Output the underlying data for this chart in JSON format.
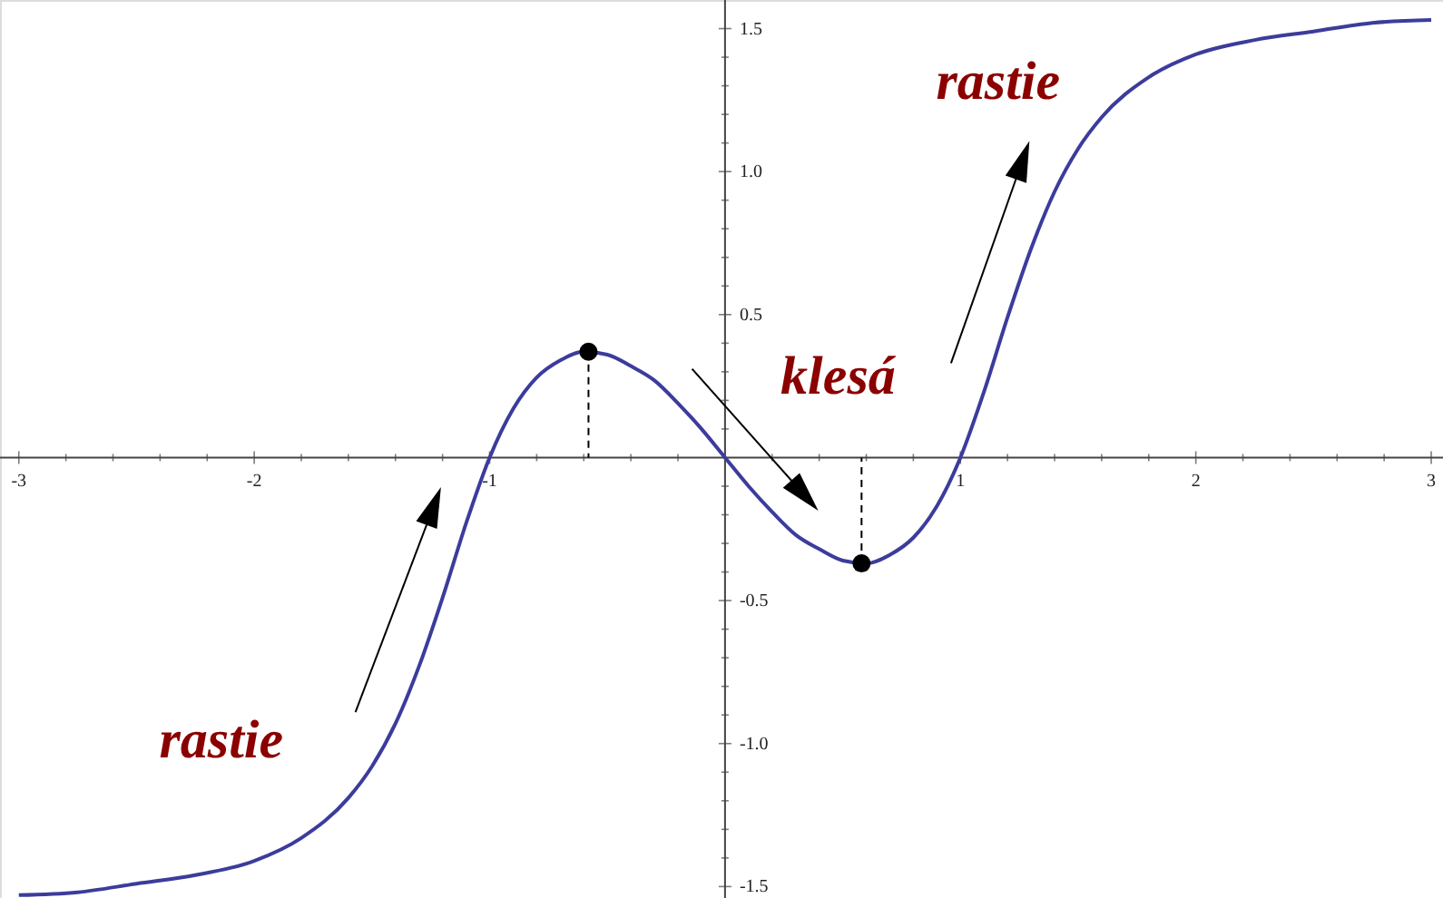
{
  "chart_data": {
    "type": "line",
    "xlim": [
      -3.08,
      3.05
    ],
    "ylim": [
      -1.54,
      1.6
    ],
    "xticks": [
      -3,
      -2,
      -1,
      1,
      2,
      3,
      {
        "value": -2.8,
        "label": null
      },
      {
        "value": -2.6,
        "label": null
      },
      {
        "value": -2.4,
        "label": null
      },
      {
        "value": -2.2,
        "label": null
      },
      {
        "value": -1.8,
        "label": null
      },
      {
        "value": -1.6,
        "label": null
      },
      {
        "value": -1.4,
        "label": null
      },
      {
        "value": -1.2,
        "label": null
      },
      {
        "value": -0.8,
        "label": null
      },
      {
        "value": -0.6,
        "label": null
      },
      {
        "value": -0.4,
        "label": null
      },
      {
        "value": -0.2,
        "label": null
      },
      {
        "value": 0.2,
        "label": null
      },
      {
        "value": 0.4,
        "label": null
      },
      {
        "value": 0.6,
        "label": null
      },
      {
        "value": 0.8,
        "label": null
      },
      {
        "value": 1.2,
        "label": null
      },
      {
        "value": 1.4,
        "label": null
      },
      {
        "value": 1.6,
        "label": null
      },
      {
        "value": 1.8,
        "label": null
      },
      {
        "value": 2.2,
        "label": null
      },
      {
        "value": 2.4,
        "label": null
      },
      {
        "value": 2.6,
        "label": null
      },
      {
        "value": 2.8,
        "label": null
      }
    ],
    "yticks": [
      {
        "value": -1.5,
        "label": "-1.5"
      },
      {
        "value": -1,
        "label": "-1.0"
      },
      {
        "value": -0.5,
        "label": "-0.5"
      },
      {
        "value": 0.5,
        "label": "0.5"
      },
      {
        "value": 1,
        "label": "1.0"
      },
      {
        "value": 1.5,
        "label": "1.5"
      },
      {
        "value": -1.4,
        "label": null
      },
      {
        "value": -1.3,
        "label": null
      },
      {
        "value": -1.2,
        "label": null
      },
      {
        "value": -1.1,
        "label": null
      },
      {
        "value": -0.9,
        "label": null
      },
      {
        "value": -0.8,
        "label": null
      },
      {
        "value": -0.7,
        "label": null
      },
      {
        "value": -0.6,
        "label": null
      },
      {
        "value": -0.4,
        "label": null
      },
      {
        "value": -0.3,
        "label": null
      },
      {
        "value": -0.2,
        "label": null
      },
      {
        "value": -0.1,
        "label": null
      },
      {
        "value": 0.1,
        "label": null
      },
      {
        "value": 0.2,
        "label": null
      },
      {
        "value": 0.3,
        "label": null
      },
      {
        "value": 0.4,
        "label": null
      },
      {
        "value": 0.6,
        "label": null
      },
      {
        "value": 0.7,
        "label": null
      },
      {
        "value": 0.8,
        "label": null
      },
      {
        "value": 0.9,
        "label": null
      },
      {
        "value": 1.1,
        "label": null
      },
      {
        "value": 1.2,
        "label": null
      },
      {
        "value": 1.3,
        "label": null
      },
      {
        "value": 1.4,
        "label": null
      }
    ],
    "grid": false,
    "series": [
      {
        "color": "#3c3c9c",
        "x": [
          -3,
          -2.75,
          -2.5,
          -2.25,
          -2,
          -1.8,
          -1.6,
          -1.5,
          -1.4,
          -1.3,
          -1.2,
          -1.1,
          -1,
          -0.9,
          -0.8,
          -0.7,
          -0.6,
          -0.5,
          -0.4,
          -0.3,
          -0.2,
          -0.1,
          0,
          0.1,
          0.2,
          0.3,
          0.4,
          0.5,
          0.6,
          0.7,
          0.8,
          0.9,
          1,
          1.1,
          1.2,
          1.3,
          1.4,
          1.5,
          1.6,
          1.8,
          2,
          2.25,
          2.5,
          2.75,
          3
        ],
        "values": [
          -1.53,
          -1.52,
          -1.49,
          -1.46,
          -1.41,
          -1.33,
          -1.19,
          -1.08,
          -0.93,
          -0.73,
          -0.49,
          -0.23,
          0,
          0.17,
          0.28,
          0.34,
          0.37,
          0.36,
          0.32,
          0.27,
          0.19,
          0.1,
          0,
          -0.1,
          -0.19,
          -0.27,
          -0.32,
          -0.36,
          -0.37,
          -0.34,
          -0.28,
          -0.17,
          0,
          0.23,
          0.49,
          0.73,
          0.93,
          1.08,
          1.19,
          1.33,
          1.41,
          1.46,
          1.49,
          1.52,
          1.53
        ]
      },
      {
        "type": "lollipop",
        "color": "#000000",
        "line_style": "dashed",
        "x": [
          -0.58,
          0.58
        ],
        "values": [
          0.37,
          -0.37
        ]
      }
    ],
    "annotations": [
      "rastie",
      "klesá",
      "rastie"
    ]
  }
}
